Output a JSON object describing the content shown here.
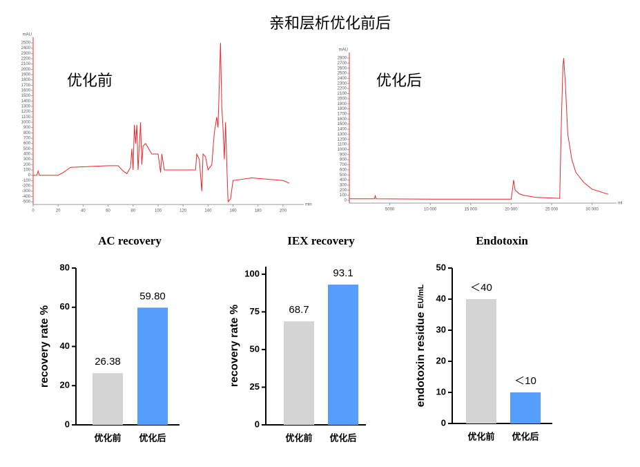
{
  "title": "亲和层析优化前后",
  "chart_data": [
    {
      "type": "line",
      "annotation": "优化前",
      "y_unit": "mAU",
      "x_unit": "min",
      "color": "#e8262a",
      "x": [
        0,
        3,
        4,
        5,
        20,
        24,
        27,
        30,
        60,
        68,
        72,
        75,
        78,
        79,
        80,
        81,
        82,
        83,
        84,
        86,
        87,
        88,
        90,
        95,
        100,
        102,
        103,
        105,
        130,
        131,
        133,
        135,
        136,
        138,
        140,
        143,
        145,
        147,
        148,
        150,
        151,
        152,
        153,
        154,
        155,
        156,
        158,
        160,
        175,
        200,
        205
      ],
      "values": [
        0,
        0,
        80,
        0,
        0,
        50,
        100,
        150,
        180,
        180,
        80,
        30,
        150,
        500,
        100,
        950,
        600,
        950,
        100,
        1000,
        200,
        550,
        600,
        400,
        400,
        50,
        400,
        100,
        100,
        400,
        300,
        -300,
        400,
        350,
        100,
        200,
        800,
        1100,
        900,
        2500,
        1300,
        900,
        300,
        1000,
        200,
        -500,
        -450,
        -100,
        -50,
        -100,
        -150
      ],
      "xlim": [
        0,
        210
      ],
      "ylim": [
        -500,
        2500
      ],
      "xticks": [
        0,
        20,
        40,
        60,
        80,
        100,
        120,
        140,
        160,
        180,
        200
      ],
      "yticks": [
        -500,
        -400,
        -300,
        -200,
        -100,
        0,
        100,
        200,
        300,
        400,
        500,
        600,
        700,
        800,
        900,
        1000,
        1100,
        1200,
        1300,
        1400,
        1500,
        1600,
        1700,
        1800,
        1900,
        2000,
        2100,
        2200,
        2300,
        2400,
        2500
      ]
    },
    {
      "type": "line",
      "annotation": "优化后",
      "y_unit": "mAU",
      "x_unit": "ml",
      "color": "#e8262a",
      "x": [
        0,
        3100,
        3200,
        3300,
        10000,
        20000,
        20200,
        20300,
        20500,
        21000,
        21500,
        23000,
        26000,
        26200,
        26400,
        26500,
        26700,
        27000,
        27500,
        28000,
        29000,
        30000,
        32000
      ],
      "values": [
        30,
        30,
        90,
        30,
        25,
        25,
        250,
        400,
        200,
        130,
        100,
        60,
        40,
        1500,
        2650,
        2800,
        2300,
        1300,
        800,
        550,
        350,
        220,
        120
      ],
      "xlim": [
        0,
        32000
      ],
      "ylim": [
        0,
        2800
      ],
      "xticks": [
        {
          "value": 5000,
          "label": "5000"
        },
        {
          "value": 10000,
          "label": "10 000"
        },
        {
          "value": 15000,
          "label": "15 000"
        },
        {
          "value": 20000,
          "label": "20 000"
        },
        {
          "value": 25000,
          "label": "25 000"
        },
        {
          "value": 30000,
          "label": "30 000"
        }
      ],
      "yticks": [
        0,
        100,
        200,
        300,
        400,
        500,
        600,
        700,
        800,
        900,
        1000,
        1100,
        1200,
        1300,
        1400,
        1500,
        1600,
        1700,
        1800,
        1900,
        2000,
        2100,
        2200,
        2300,
        2400,
        2500,
        2600,
        2700,
        2800
      ]
    },
    {
      "type": "bar",
      "title": "AC recovery",
      "y_label": "recovery rate %",
      "categories": [
        "优化前",
        "优化后"
      ],
      "values": [
        26.38,
        59.8
      ],
      "value_labels": [
        "26.38",
        "59.80"
      ],
      "colors": [
        "#d4d4d4",
        "#559efc"
      ],
      "ylim": [
        0,
        80
      ],
      "yticks": [
        0,
        20,
        40,
        60,
        80
      ]
    },
    {
      "type": "bar",
      "title": "IEX recovery",
      "y_label": "recovery rate %",
      "categories": [
        "优化前",
        "优化后"
      ],
      "values": [
        68.7,
        93.1
      ],
      "colors": [
        "#d4d4d4",
        "#559efc"
      ],
      "ylim": [
        0,
        105
      ],
      "yticks": [
        0,
        25,
        50,
        75,
        100
      ]
    },
    {
      "type": "bar",
      "title": "Endotoxin",
      "y_label": "endotoxin residue",
      "y_label_unit": "EU/mL",
      "categories": [
        "优化前",
        "优化后"
      ],
      "values": [
        40,
        10
      ],
      "value_labels": [
        "＜40",
        "＜10"
      ],
      "colors": [
        "#d4d4d4",
        "#559efc"
      ],
      "ylim": [
        0,
        50
      ],
      "yticks": [
        0,
        10,
        20,
        30,
        40,
        50
      ]
    }
  ]
}
